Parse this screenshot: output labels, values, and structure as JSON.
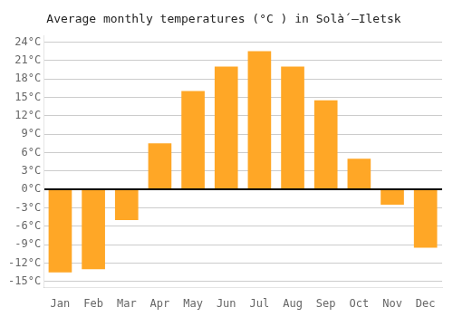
{
  "chart_data": {
    "type": "bar",
    "title": "Average monthly temperatures (°C ) in Solà́ –Iletsk",
    "categories": [
      "Jan",
      "Feb",
      "Mar",
      "Apr",
      "May",
      "Jun",
      "Jul",
      "Aug",
      "Sep",
      "Oct",
      "Nov",
      "Dec"
    ],
    "values": [
      -13.5,
      -13.0,
      -5.0,
      7.5,
      16.0,
      20.0,
      22.5,
      20.0,
      14.5,
      5.0,
      -2.5,
      -9.5
    ],
    "color": "#FFA726",
    "ylim": [
      -16,
      25
    ],
    "yticks": [
      {
        "value": -15,
        "label": "-15°C"
      },
      {
        "value": -12,
        "label": "-12°C"
      },
      {
        "value": -9,
        "label": "-9°C"
      },
      {
        "value": -6,
        "label": "-6°C"
      },
      {
        "value": -3,
        "label": "-3°C"
      },
      {
        "value": 0,
        "label": "0°C"
      },
      {
        "value": 3,
        "label": "3°C"
      },
      {
        "value": 6,
        "label": "6°C"
      },
      {
        "value": 9,
        "label": "9°C"
      },
      {
        "value": 12,
        "label": "12°C"
      },
      {
        "value": 15,
        "label": "15°C"
      },
      {
        "value": 18,
        "label": "18°C"
      },
      {
        "value": 21,
        "label": "21°C"
      },
      {
        "value": 24,
        "label": "24°C"
      }
    ],
    "grid": true
  }
}
